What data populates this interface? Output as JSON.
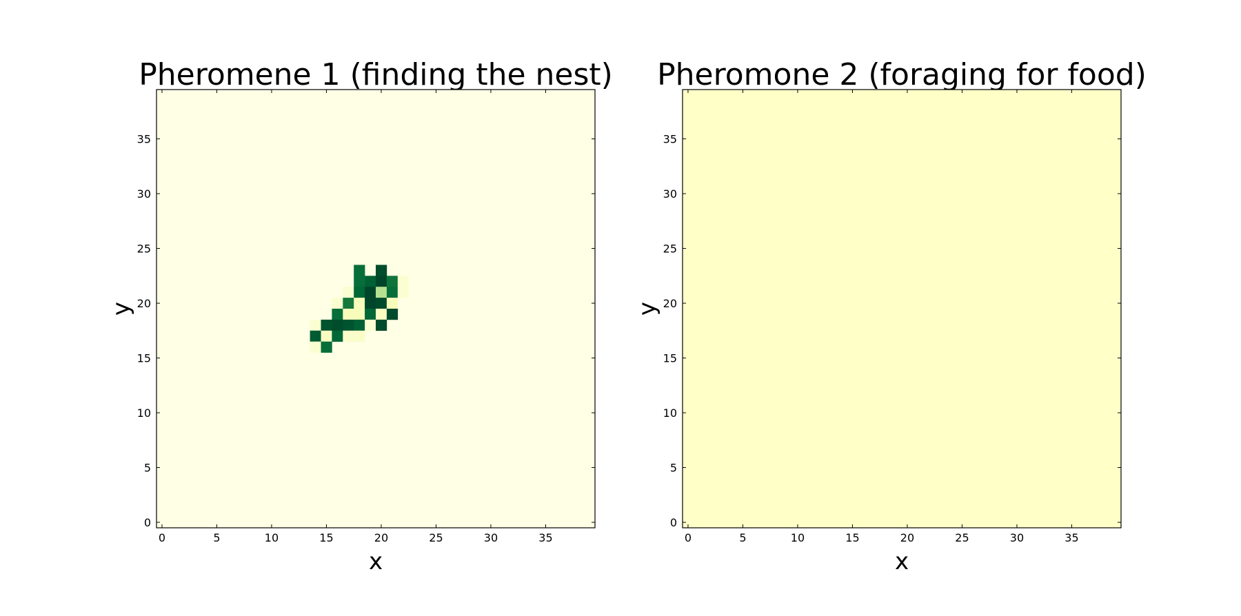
{
  "chart_data": [
    {
      "type": "heatmap",
      "title": "Pheromene 1 (finding the nest)",
      "xlabel": "x",
      "ylabel": "y",
      "xlim": [
        -0.5,
        39.5
      ],
      "ylim": [
        -0.5,
        39.5
      ],
      "xticks": [
        "0",
        "5",
        "10",
        "15",
        "20",
        "25",
        "30",
        "35"
      ],
      "yticks": [
        "0",
        "5",
        "10",
        "15",
        "20",
        "25",
        "30",
        "35"
      ],
      "grid": false,
      "colormap": "YlGn",
      "background_color": "#ffffe5",
      "cells": [
        {
          "x": 18,
          "y": 23,
          "v": 0.85
        },
        {
          "x": 20,
          "y": 23,
          "v": 0.97
        },
        {
          "x": 18,
          "y": 22,
          "v": 0.85
        },
        {
          "x": 19,
          "y": 22,
          "v": 0.9
        },
        {
          "x": 20,
          "y": 22,
          "v": 1.0
        },
        {
          "x": 21,
          "y": 22,
          "v": 0.82
        },
        {
          "x": 22,
          "y": 22,
          "v": 0.06
        },
        {
          "x": 17,
          "y": 21,
          "v": 0.06
        },
        {
          "x": 18,
          "y": 21,
          "v": 0.88
        },
        {
          "x": 19,
          "y": 21,
          "v": 1.0
        },
        {
          "x": 20,
          "y": 21,
          "v": 0.35
        },
        {
          "x": 21,
          "y": 21,
          "v": 0.85
        },
        {
          "x": 22,
          "y": 21,
          "v": 0.06
        },
        {
          "x": 16,
          "y": 20,
          "v": 0.06
        },
        {
          "x": 17,
          "y": 20,
          "v": 0.8
        },
        {
          "x": 18,
          "y": 20,
          "v": 0.12
        },
        {
          "x": 19,
          "y": 20,
          "v": 1.0
        },
        {
          "x": 20,
          "y": 20,
          "v": 0.98
        },
        {
          "x": 21,
          "y": 20,
          "v": 0.12
        },
        {
          "x": 16,
          "y": 19,
          "v": 0.85
        },
        {
          "x": 17,
          "y": 19,
          "v": 0.12
        },
        {
          "x": 18,
          "y": 19,
          "v": 0.12
        },
        {
          "x": 19,
          "y": 19,
          "v": 0.88
        },
        {
          "x": 20,
          "y": 19,
          "v": 0.1
        },
        {
          "x": 21,
          "y": 19,
          "v": 0.98
        },
        {
          "x": 14,
          "y": 18,
          "v": 0.06
        },
        {
          "x": 15,
          "y": 18,
          "v": 0.95
        },
        {
          "x": 16,
          "y": 18,
          "v": 0.97
        },
        {
          "x": 17,
          "y": 18,
          "v": 0.95
        },
        {
          "x": 18,
          "y": 18,
          "v": 0.9
        },
        {
          "x": 19,
          "y": 18,
          "v": 0.06
        },
        {
          "x": 20,
          "y": 18,
          "v": 0.98
        },
        {
          "x": 14,
          "y": 17,
          "v": 0.92
        },
        {
          "x": 15,
          "y": 17,
          "v": 0.1
        },
        {
          "x": 16,
          "y": 17,
          "v": 0.88
        },
        {
          "x": 17,
          "y": 17,
          "v": 0.08
        },
        {
          "x": 18,
          "y": 17,
          "v": 0.08
        },
        {
          "x": 14,
          "y": 16,
          "v": 0.06
        },
        {
          "x": 15,
          "y": 16,
          "v": 0.85
        }
      ]
    },
    {
      "type": "heatmap",
      "title": "Pheromone 2 (foraging for food)",
      "xlabel": "x",
      "ylabel": "y",
      "xlim": [
        -0.5,
        39.5
      ],
      "ylim": [
        -0.5,
        39.5
      ],
      "xticks": [
        "0",
        "5",
        "10",
        "15",
        "20",
        "25",
        "30",
        "35"
      ],
      "yticks": [
        "0",
        "5",
        "10",
        "15",
        "20",
        "25",
        "30",
        "35"
      ],
      "grid": false,
      "colormap": "YlGn",
      "background_color": "#ffffc8",
      "cells": []
    }
  ]
}
